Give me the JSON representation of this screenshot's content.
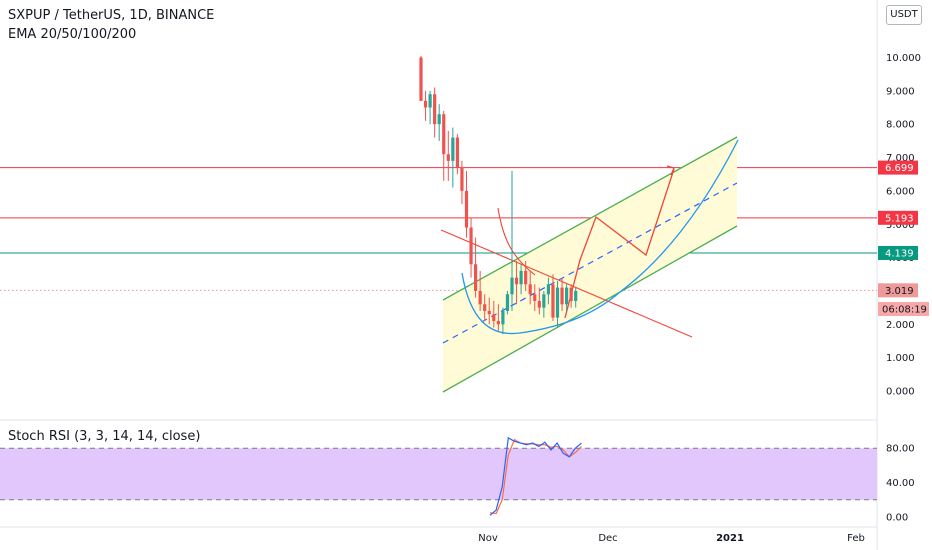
{
  "header": {
    "symbol_title": "SXPUP / TetherUS, 1D, BINANCE",
    "indicator": "EMA 20/50/100/200",
    "currency_button": "USDT"
  },
  "price_axis": {
    "ticks": [
      "10.000",
      "9.000",
      "8.000",
      "7.000",
      "6.000",
      "5.000",
      "4.000",
      "3.000",
      "2.000",
      "1.000",
      "0.000"
    ],
    "labels": [
      {
        "text": "6.699",
        "value": 6.699,
        "color": "#f23645"
      },
      {
        "text": "5.193",
        "value": 5.193,
        "color": "#f23645"
      },
      {
        "text": "4.139",
        "value": 4.139,
        "color": "#089981"
      },
      {
        "text": "3.019",
        "value": 3.019,
        "color": "#ef9a9a"
      }
    ],
    "countdown": "06:08:19"
  },
  "oscillator": {
    "title": "Stoch RSI (3, 3, 14, 14, close)",
    "ticks": [
      "80.00",
      "40.00",
      "0.00"
    ],
    "upper_band": 80,
    "lower_band": 20
  },
  "time_axis": {
    "labels": [
      {
        "text": "Nov",
        "bold": false
      },
      {
        "text": "Dec",
        "bold": false
      },
      {
        "text": "2021",
        "bold": true
      },
      {
        "text": "Feb",
        "bold": false
      }
    ]
  },
  "colors": {
    "up": "#26a69a",
    "down": "#ef5350",
    "channel_fill": "#fffbd6",
    "channel_line": "#4caf50",
    "stoch_fill": "#e1c7fb",
    "stoch_k": "#2962ff",
    "stoch_d": "#ff6d3a",
    "projection": "#f44336",
    "arc": "#2196f3"
  },
  "chart_data": {
    "type": "candlestick",
    "series": [
      {
        "name": "price",
        "points": [
          [
            10.0,
            10.05,
            8.7,
            8.7
          ],
          [
            8.7,
            9.0,
            8.1,
            8.5
          ],
          [
            8.5,
            9.0,
            8.0,
            8.9
          ],
          [
            8.9,
            9.1,
            7.6,
            8.0
          ],
          [
            8.0,
            8.6,
            7.5,
            8.3
          ],
          [
            8.3,
            8.4,
            6.3,
            7.1
          ],
          [
            7.1,
            7.8,
            6.3,
            6.9
          ],
          [
            6.9,
            7.9,
            6.1,
            7.6
          ],
          [
            7.6,
            7.7,
            6.5,
            6.7
          ],
          [
            6.7,
            6.9,
            5.6,
            6.0
          ],
          [
            6.0,
            6.6,
            4.6,
            4.9
          ],
          [
            4.9,
            5.2,
            3.4,
            3.8
          ],
          [
            3.8,
            4.6,
            2.8,
            3.0
          ],
          [
            3.0,
            3.6,
            2.4,
            2.6
          ],
          [
            2.6,
            2.9,
            2.1,
            2.4
          ],
          [
            2.4,
            2.8,
            2.0,
            2.3
          ],
          [
            2.3,
            2.7,
            1.9,
            2.1
          ],
          [
            2.1,
            2.6,
            1.8,
            2.0
          ],
          [
            2.0,
            2.5,
            1.7,
            2.4
          ],
          [
            2.4,
            3.0,
            2.3,
            2.9
          ],
          [
            2.9,
            6.6,
            2.4,
            3.4
          ],
          [
            3.4,
            3.9,
            2.6,
            3.2
          ],
          [
            3.2,
            3.8,
            2.9,
            3.6
          ],
          [
            3.6,
            3.9,
            3.0,
            3.2
          ],
          [
            3.2,
            3.6,
            2.6,
            2.9
          ],
          [
            2.9,
            3.2,
            2.4,
            2.7
          ],
          [
            2.7,
            3.1,
            2.3,
            2.5
          ],
          [
            2.5,
            3.0,
            2.2,
            2.9
          ],
          [
            2.9,
            3.4,
            2.6,
            3.2
          ],
          [
            3.2,
            3.5,
            2.1,
            2.2
          ],
          [
            2.2,
            3.3,
            1.9,
            3.1
          ],
          [
            3.1,
            3.4,
            2.4,
            2.6
          ],
          [
            2.6,
            3.2,
            2.4,
            3.1
          ],
          [
            3.1,
            3.2,
            2.5,
            2.7
          ],
          [
            2.7,
            3.1,
            2.5,
            3.0
          ]
        ]
      },
      {
        "name": "stoch_k",
        "values": [
          2,
          8,
          35,
          92,
          88,
          86,
          84,
          86,
          82,
          87,
          78,
          86,
          74,
          70,
          80,
          86
        ]
      },
      {
        "name": "stoch_d",
        "values": [
          5,
          4,
          20,
          72,
          90,
          86,
          85,
          85,
          84,
          84,
          81,
          82,
          78,
          70,
          75,
          82
        ]
      }
    ]
  }
}
